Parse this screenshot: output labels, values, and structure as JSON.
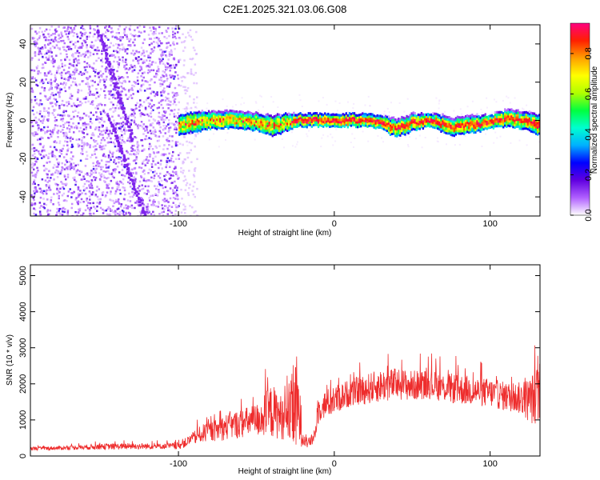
{
  "figure_title": "C2E1.2025.321.03.06.G08",
  "colors": {
    "snr_line": "#ee2c2c",
    "frame": "#000000",
    "background": "#ffffff"
  },
  "chart_data": [
    {
      "type": "heatmap",
      "title": "C2E1.2025.321.03.06.G08",
      "xlabel": "Height of straight line (km)",
      "ylabel": "Frequency (Hz)",
      "xlim": [
        -195,
        132
      ],
      "ylim": [
        -50,
        50
      ],
      "xticks": [
        -100,
        0,
        100
      ],
      "yticks": [
        -40,
        -20,
        0,
        20,
        40
      ],
      "colorbar": {
        "label": "Normalized spectral amplitude",
        "range": [
          0,
          0.95
        ],
        "ticks": [
          0.0,
          0.2,
          0.4,
          0.6,
          0.8
        ],
        "colormap": [
          "#ffffff",
          "#b060ff",
          "#6000e0",
          "#0000ff",
          "#00b0ff",
          "#00ffd0",
          "#00ff40",
          "#b0ff00",
          "#ffff00",
          "#ffa000",
          "#ff2000",
          "#ff0080"
        ]
      },
      "noise_region_x": [
        -195,
        -100
      ],
      "sparse_edge_x": [
        -100,
        -88
      ],
      "doppler_line": {
        "x": [
          -100,
          -90,
          -80,
          -70,
          -60,
          -50,
          -40,
          -30,
          -25,
          -20,
          -10,
          0,
          10,
          20,
          30,
          35,
          40,
          45,
          50,
          60,
          70,
          75,
          80,
          90,
          100,
          110,
          120,
          130
        ],
        "freq": [
          -2,
          -1,
          0,
          0,
          0,
          -1,
          -3,
          -1,
          0,
          0,
          0,
          0,
          0,
          0,
          -1,
          -3,
          -4,
          -3,
          -1,
          0,
          -2,
          -4,
          -3,
          -2,
          -1,
          1,
          0,
          -2
        ],
        "spread": [
          6,
          6,
          5,
          5,
          5,
          5,
          6,
          5,
          4,
          4,
          4,
          4,
          4,
          4,
          4,
          5,
          5,
          5,
          5,
          4,
          5,
          5,
          5,
          5,
          4,
          5,
          5,
          6
        ]
      },
      "streaks": [
        {
          "x": [
            -152,
            -130
          ],
          "freq": [
            48,
            -10
          ]
        },
        {
          "x": [
            -145,
            -122
          ],
          "freq": [
            2,
            -50
          ]
        }
      ]
    },
    {
      "type": "line",
      "xlabel": "Height of straight line (km)",
      "ylabel": "SNR (10 * v/v)",
      "xlim": [
        -195,
        132
      ],
      "ylim": [
        0,
        5300
      ],
      "xticks": [
        -100,
        0,
        100
      ],
      "yticks": [
        0,
        1000,
        2000,
        3000,
        4000,
        5000
      ],
      "series": [
        {
          "name": "SNR",
          "envelope_x": [
            -195,
            -170,
            -150,
            -130,
            -110,
            -100,
            -95,
            -90,
            -85,
            -80,
            -75,
            -70,
            -60,
            -50,
            -45,
            -40,
            -35,
            -30,
            -27,
            -24,
            -22,
            -20,
            -17,
            -14,
            -12,
            -10,
            -5,
            0,
            10,
            20,
            30,
            40,
            50,
            60,
            70,
            80,
            90,
            100,
            110,
            120,
            126,
            130,
            132
          ],
          "base": [
            200,
            230,
            260,
            270,
            270,
            280,
            380,
            500,
            620,
            680,
            720,
            800,
            900,
            1000,
            1100,
            1250,
            1100,
            1000,
            1250,
            1350,
            1050,
            500,
            350,
            450,
            700,
            1300,
            1450,
            1550,
            1750,
            1850,
            1950,
            2000,
            1950,
            2000,
            1900,
            1850,
            1800,
            1750,
            1650,
            1600,
            1550,
            1700,
            1500
          ],
          "amp": [
            100,
            130,
            180,
            200,
            170,
            220,
            300,
            420,
            550,
            600,
            700,
            800,
            900,
            1000,
            1400,
            1700,
            1400,
            1300,
            2400,
            3300,
            1800,
            500,
            300,
            350,
            500,
            800,
            900,
            900,
            850,
            950,
            1000,
            1000,
            950,
            900,
            900,
            950,
            900,
            900,
            900,
            1000,
            1500,
            1800,
            1200
          ]
        }
      ]
    }
  ]
}
